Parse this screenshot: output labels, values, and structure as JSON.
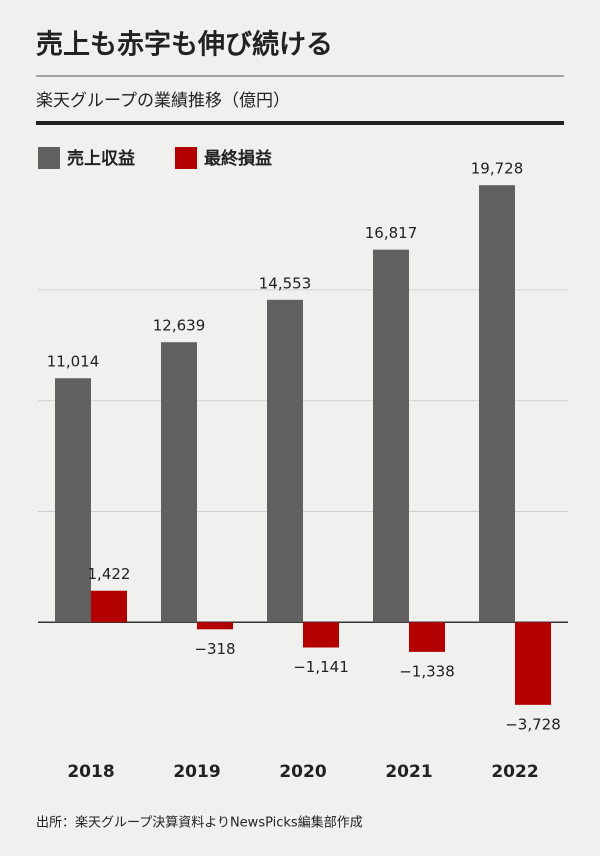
{
  "chart_data": {
    "type": "bar",
    "title": "売上も赤字も伸び続ける",
    "subtitle": "楽天グループの業績推移（億円）",
    "categories": [
      "2018",
      "2019",
      "2020",
      "2021",
      "2022"
    ],
    "series": [
      {
        "name": "売上収益",
        "color": "#606060",
        "values": [
          11014,
          12639,
          14553,
          16817,
          19728
        ],
        "value_labels": [
          "11,014",
          "12,639",
          "14,553",
          "16,817",
          "19,728"
        ]
      },
      {
        "name": "最終損益",
        "color": "#b30000",
        "values": [
          1422,
          -318,
          -1141,
          -1338,
          -3728
        ],
        "value_labels": [
          "1,422",
          "−318",
          "−1,141",
          "−1,338",
          "−3,728"
        ]
      }
    ],
    "ylim": [
      -5000,
      21000
    ],
    "yticks": [
      0,
      5000,
      10000,
      15000
    ],
    "grid": true,
    "source": "出所：楽天グループ決算資料よりNewsPicks編集部作成"
  }
}
